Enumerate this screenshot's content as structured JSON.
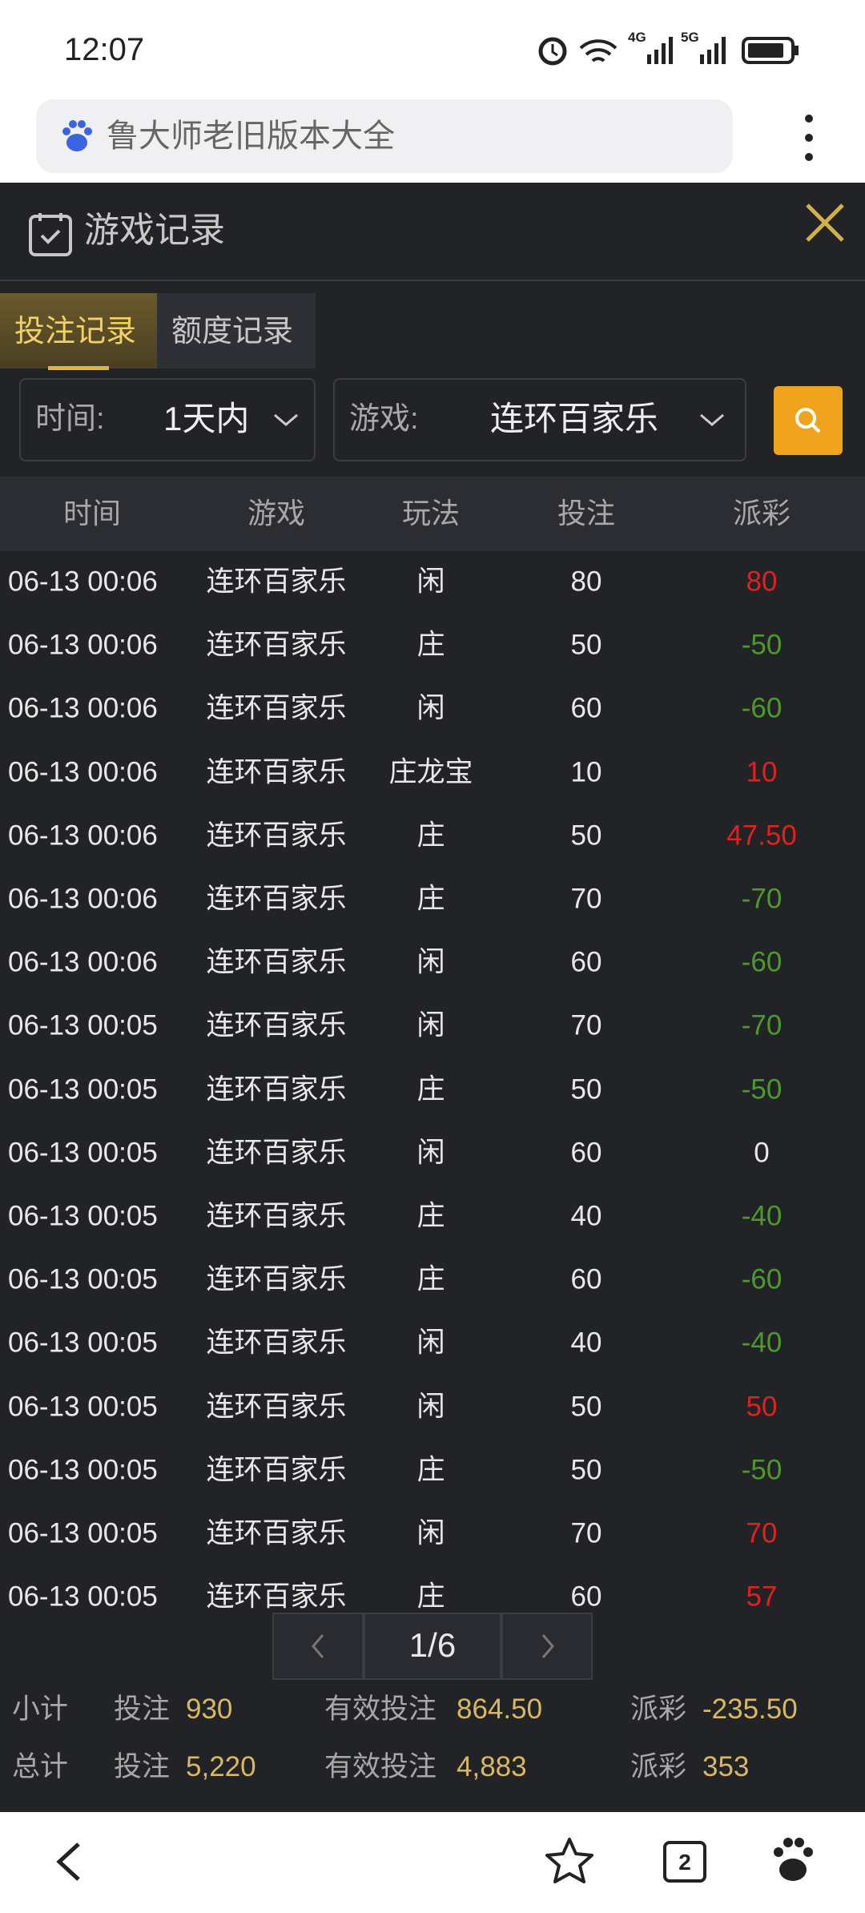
{
  "status_bar": {
    "time": "12:07",
    "network_1": "4G",
    "network_2": "5G"
  },
  "browser": {
    "address": "鲁大师老旧版本大全"
  },
  "dialog": {
    "title": "游戏记录",
    "tabs": [
      "投注记录",
      "额度记录"
    ],
    "filters": [
      {
        "label": "时间:",
        "value": "1天内"
      },
      {
        "label": "游戏:",
        "value": "连环百家乐"
      }
    ]
  },
  "table": {
    "columns": [
      "时间",
      "游戏",
      "玩法",
      "投注",
      "派彩"
    ],
    "rows": [
      [
        "06-13 00:06",
        "连环百家乐",
        "闲",
        "80",
        "80"
      ],
      [
        "06-13 00:06",
        "连环百家乐",
        "庄",
        "50",
        "-50"
      ],
      [
        "06-13 00:06",
        "连环百家乐",
        "闲",
        "60",
        "-60"
      ],
      [
        "06-13 00:06",
        "连环百家乐",
        "庄龙宝",
        "10",
        "10"
      ],
      [
        "06-13 00:06",
        "连环百家乐",
        "庄",
        "50",
        "47.50"
      ],
      [
        "06-13 00:06",
        "连环百家乐",
        "庄",
        "70",
        "-70"
      ],
      [
        "06-13 00:06",
        "连环百家乐",
        "闲",
        "60",
        "-60"
      ],
      [
        "06-13 00:05",
        "连环百家乐",
        "闲",
        "70",
        "-70"
      ],
      [
        "06-13 00:05",
        "连环百家乐",
        "庄",
        "50",
        "-50"
      ],
      [
        "06-13 00:05",
        "连环百家乐",
        "闲",
        "60",
        "0"
      ],
      [
        "06-13 00:05",
        "连环百家乐",
        "庄",
        "40",
        "-40"
      ],
      [
        "06-13 00:05",
        "连环百家乐",
        "庄",
        "60",
        "-60"
      ],
      [
        "06-13 00:05",
        "连环百家乐",
        "闲",
        "40",
        "-40"
      ],
      [
        "06-13 00:05",
        "连环百家乐",
        "闲",
        "50",
        "50"
      ],
      [
        "06-13 00:05",
        "连环百家乐",
        "庄",
        "50",
        "-50"
      ],
      [
        "06-13 00:05",
        "连环百家乐",
        "闲",
        "70",
        "70"
      ],
      [
        "06-13 00:05",
        "连环百家乐",
        "庄",
        "60",
        "57"
      ]
    ]
  },
  "pagination": {
    "page": "1/6"
  },
  "summary": [
    {
      "label": "小计",
      "items": [
        {
          "label": "投注",
          "value": "930"
        },
        {
          "label": "有效投注",
          "value": "864.50"
        },
        {
          "label": "派彩",
          "value": "-235.50"
        }
      ]
    },
    {
      "label": "总计",
      "items": [
        {
          "label": "投注",
          "value": "5,220"
        },
        {
          "label": "有效投注",
          "value": "4,883"
        },
        {
          "label": "派彩",
          "value": "353"
        }
      ]
    }
  ],
  "bottom_nav": {
    "tab_count": "2"
  }
}
